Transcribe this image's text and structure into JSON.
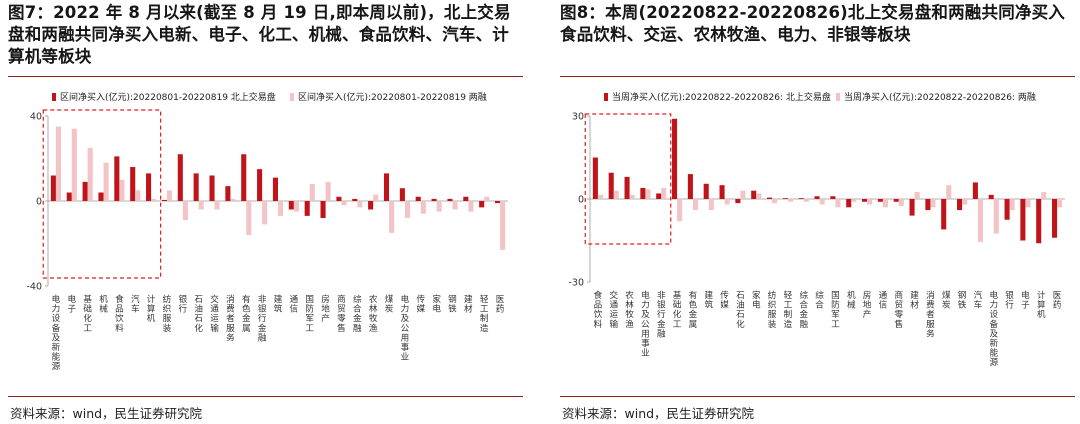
{
  "charts": [
    {
      "title": "图7：2022 年 8 月以来(截至 8 月 19 日,即本周以前)，北上交易盘和两融共同净买入电新、电子、化工、机械、食品饮料、汽车、计算机等板块",
      "source": "资料来源：wind，民生证券研究院",
      "colors": {
        "series1": "#c0141b",
        "series2": "#f2c4c6",
        "highlight": "#e21d1d",
        "rule": "#9a1b1f"
      }
    },
    {
      "title": "图8：本周(20220822-20220826)北上交易盘和两融共同净买入食品饮料、交运、农林牧渔、电力、非银等板块",
      "source": "资料来源：wind，民生证券研究院",
      "colors": {
        "series1": "#c0141b",
        "series2": "#f2c4c6",
        "highlight": "#e21d1d",
        "rule": "#9a1b1f"
      }
    }
  ],
  "chart_data": [
    {
      "type": "bar",
      "title": "",
      "xlabel": "",
      "ylabel": "",
      "ylim": [
        -40,
        40
      ],
      "yticks": [
        -40,
        0,
        40
      ],
      "legend_position": "top",
      "grid": false,
      "highlight_first_n": 7,
      "categories": [
        "电力设备及新能源",
        "电子",
        "基础化工",
        "机械",
        "食品饮料",
        "汽车",
        "计算机",
        "纺织服装",
        "银行",
        "石油石化",
        "交通运输",
        "消费者服务",
        "有色金属",
        "非银行金融",
        "建筑",
        "通信",
        "国防军工",
        "房地产",
        "商贸零售",
        "综合金融",
        "农林牧渔",
        "煤炭",
        "电力及公用事业",
        "传媒",
        "家电",
        "钢铁",
        "建材",
        "轻工制造",
        "医药"
      ],
      "series": [
        {
          "name": "区间净买入(亿元):20220801-20220819 北上交易盘",
          "values": [
            12,
            4,
            9,
            4,
            21,
            16,
            13,
            0.5,
            22,
            13,
            12,
            7,
            22,
            15,
            11,
            -4,
            -7,
            -8,
            2,
            1,
            -4,
            13,
            6,
            2,
            1,
            1,
            2,
            -3,
            -1
          ]
        },
        {
          "name": "区间净买入(亿元):20220801-20220819 两融",
          "values": [
            35,
            34,
            25,
            18,
            10,
            5,
            1,
            5,
            -9,
            -4,
            -4,
            1,
            -16,
            -11,
            -7,
            -5,
            8,
            9,
            -2,
            -3,
            3,
            -15,
            -8,
            -6,
            -5,
            -4,
            -5,
            2,
            -23
          ]
        }
      ]
    },
    {
      "type": "bar",
      "title": "",
      "xlabel": "",
      "ylabel": "",
      "ylim": [
        -30,
        30
      ],
      "yticks": [
        -30,
        0,
        30
      ],
      "legend_position": "top",
      "grid": false,
      "highlight_first_n": 5,
      "categories": [
        "食品饮料",
        "交通运输",
        "农林牧渔",
        "电力及公用事业",
        "非银行金融",
        "基础化工",
        "有色金属",
        "建筑",
        "传媒",
        "石油石化",
        "家电",
        "纺织服装",
        "轻工制造",
        "综合金融",
        "综合",
        "国防军工",
        "机械",
        "房地产",
        "通信",
        "商贸零售",
        "建材",
        "消费者服务",
        "煤炭",
        "钢铁",
        "汽车",
        "电力设备及新能源",
        "银行",
        "电子",
        "计算机",
        "医药"
      ],
      "series": [
        {
          "name": "当周净买入(亿元):20220822-20220826: 北上交易盘",
          "values": [
            15,
            9.5,
            8,
            4,
            2,
            29,
            9,
            5.5,
            5,
            -1.5,
            3,
            0.5,
            0.3,
            0.3,
            1,
            1,
            -3,
            -1,
            -1,
            -1,
            -6,
            -4,
            -11,
            -4,
            6,
            1.5,
            -7.5,
            -15,
            -16,
            -14
          ]
        },
        {
          "name": "当周净买入(亿元):20220822-20220826: 两融",
          "values": [
            1.5,
            3,
            1.5,
            3.5,
            4,
            -8,
            -4,
            -4,
            -2,
            3,
            2,
            -1.5,
            -1,
            -1,
            -2,
            -3,
            -1,
            -2,
            -3,
            -2.5,
            2.5,
            -3,
            5,
            -2,
            -15.5,
            -12.5,
            -4,
            -3,
            2.5,
            -3
          ]
        }
      ]
    }
  ]
}
